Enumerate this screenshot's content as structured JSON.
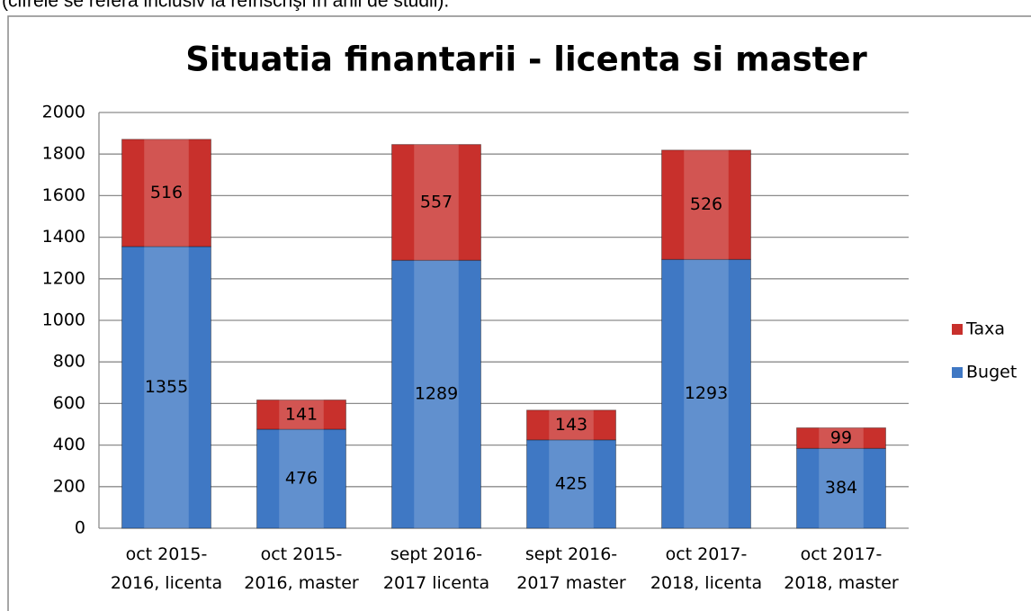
{
  "note": "(cifrele se referă inclusiv la reînscrişi în anii de studii).",
  "chart_data": {
    "type": "stacked_bar",
    "title": "Situatia finantarii - licenta si master",
    "categories": [
      "oct 2015-2016, licenta",
      "oct 2015-2016, master",
      "sept 2016-2017 licenta",
      "sept 2016-2017 master",
      "oct 2017-2018, licenta",
      "oct 2017-2018, master"
    ],
    "series": [
      {
        "name": "Buget",
        "color": "#3f78c4",
        "values": [
          1355,
          476,
          1289,
          425,
          1293,
          384
        ]
      },
      {
        "name": "Taxa",
        "color": "#c8302c",
        "values": [
          516,
          141,
          557,
          143,
          526,
          99
        ]
      }
    ],
    "ylim": [
      0,
      2000
    ],
    "yticks": [
      0,
      200,
      400,
      600,
      800,
      1000,
      1200,
      1400,
      1600,
      1800,
      2000
    ],
    "grid": true,
    "legend": "right"
  }
}
